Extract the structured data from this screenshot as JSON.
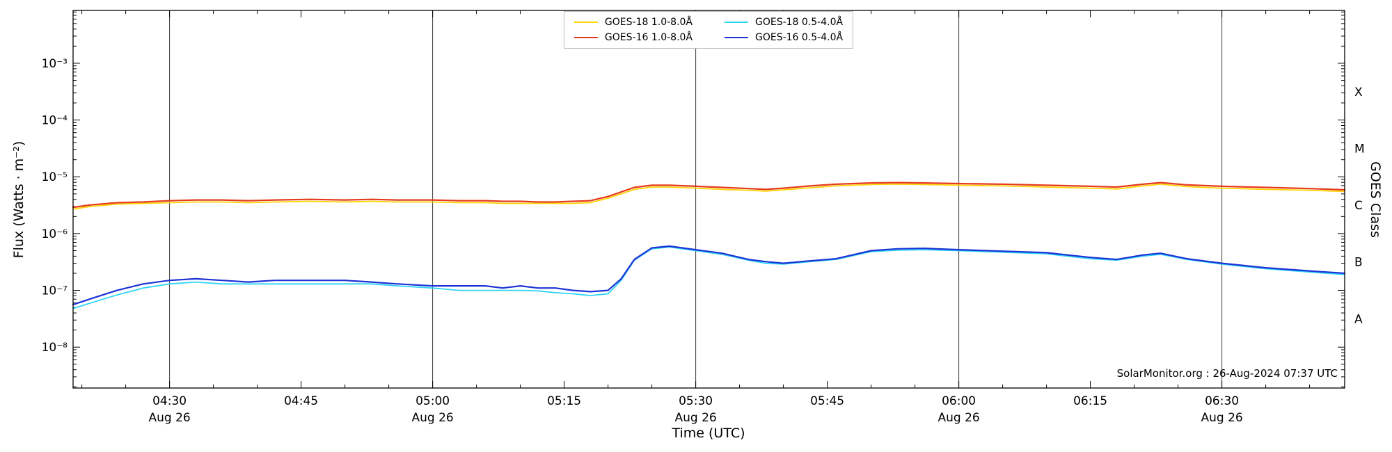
{
  "annotation": "SolarMonitor.org : 26-Aug-2024 07:37 UTC",
  "chart_data": {
    "type": "line",
    "xlabel": "Time (UTC)",
    "ylabel": "Flux (Watts · m⁻²)",
    "y2label": "GOES Class",
    "yscale": "log",
    "grid": "vertical-lines-at-half-hours",
    "legend_position": "top-center",
    "axes": {
      "x_range_minutes": [
        259,
        404
      ],
      "ylog_range": [
        -8.72,
        -2.07
      ]
    },
    "xticks": [
      {
        "minute": 270,
        "label": "04:30",
        "sub": "Aug 26",
        "major_line": true
      },
      {
        "minute": 285,
        "label": "04:45"
      },
      {
        "minute": 300,
        "label": "05:00",
        "sub": "Aug 26",
        "major_line": true
      },
      {
        "minute": 315,
        "label": "05:15"
      },
      {
        "minute": 330,
        "label": "05:30",
        "sub": "Aug 26",
        "major_line": true
      },
      {
        "minute": 345,
        "label": "05:45"
      },
      {
        "minute": 360,
        "label": "06:00",
        "sub": "Aug 26",
        "major_line": true
      },
      {
        "minute": 375,
        "label": "06:15"
      },
      {
        "minute": 390,
        "label": "06:30",
        "sub": "Aug 26",
        "major_line": true
      }
    ],
    "yticks": [
      {
        "log": -3,
        "label": "10⁻³"
      },
      {
        "log": -4,
        "label": "10⁻⁴"
      },
      {
        "log": -5,
        "label": "10⁻⁵"
      },
      {
        "log": -6,
        "label": "10⁻⁶"
      },
      {
        "log": -7,
        "label": "10⁻⁷"
      },
      {
        "log": -8,
        "label": "10⁻⁸"
      }
    ],
    "goes_classes": [
      {
        "label": "X",
        "log_mid": -3.5
      },
      {
        "label": "M",
        "log_mid": -4.5
      },
      {
        "label": "C",
        "log_mid": -5.5
      },
      {
        "label": "B",
        "log_mid": -6.5
      },
      {
        "label": "A",
        "log_mid": -7.5
      }
    ],
    "x_minutes_utc": [
      259,
      261,
      264,
      267,
      270,
      273,
      276,
      279,
      282,
      286,
      290,
      293,
      296,
      300,
      303,
      306,
      308,
      310,
      312,
      314,
      316,
      318,
      320,
      321.5,
      323,
      325,
      327,
      330,
      333,
      336,
      338,
      340,
      343,
      346,
      350,
      353,
      356,
      360,
      365,
      370,
      375,
      378,
      381,
      383,
      386,
      390,
      395,
      400,
      404
    ],
    "series": [
      {
        "key": "goes18-long",
        "name": "GOES-18 1.0-8.0Å",
        "color": "#ffd400",
        "width": 1.8,
        "values": [
          2.7e-06,
          3e-06,
          3.3e-06,
          3.4e-06,
          3.5e-06,
          3.6e-06,
          3.6e-06,
          3.5e-06,
          3.6e-06,
          3.7e-06,
          3.6e-06,
          3.7e-06,
          3.6e-06,
          3.6e-06,
          3.5e-06,
          3.5e-06,
          3.4e-06,
          3.4e-06,
          3.4e-06,
          3.4e-06,
          3.4e-06,
          3.5e-06,
          4.2e-06,
          5e-06,
          6e-06,
          6.6e-06,
          6.6e-06,
          6.3e-06,
          6e-06,
          5.8e-06,
          5.6e-06,
          5.9e-06,
          6.4e-06,
          6.9e-06,
          7.3e-06,
          7.4e-06,
          7.3e-06,
          7.1e-06,
          6.9e-06,
          6.6e-06,
          6.3e-06,
          6.1e-06,
          6.9e-06,
          7.4e-06,
          6.7e-06,
          6.3e-06,
          6e-06,
          5.8e-06,
          5.5e-06
        ]
      },
      {
        "key": "goes16-long",
        "name": "GOES-16 1.0-8.0Å",
        "color": "#e53a1c",
        "width": 2.2,
        "values": [
          2.9e-06,
          3.2e-06,
          3.5e-06,
          3.6e-06,
          3.8e-06,
          3.9e-06,
          3.9e-06,
          3.8e-06,
          3.9e-06,
          4e-06,
          3.9e-06,
          4e-06,
          3.9e-06,
          3.9e-06,
          3.8e-06,
          3.8e-06,
          3.7e-06,
          3.7e-06,
          3.6e-06,
          3.6e-06,
          3.7e-06,
          3.8e-06,
          4.5e-06,
          5.4e-06,
          6.5e-06,
          7.1e-06,
          7.1e-06,
          6.8e-06,
          6.5e-06,
          6.2e-06,
          6e-06,
          6.3e-06,
          6.9e-06,
          7.4e-06,
          7.8e-06,
          7.9e-06,
          7.8e-06,
          7.6e-06,
          7.4e-06,
          7.1e-06,
          6.8e-06,
          6.6e-06,
          7.4e-06,
          7.9e-06,
          7.2e-06,
          6.8e-06,
          6.5e-06,
          6.2e-06,
          5.9e-06
        ]
      },
      {
        "key": "goes18-short",
        "name": "GOES-18 0.5-4.0Å",
        "color": "#2fd4f4",
        "width": 1.8,
        "values": [
          4.8e-08,
          6e-08,
          8.3e-08,
          1.1e-07,
          1.3e-07,
          1.4e-07,
          1.3e-07,
          1.3e-07,
          1.3e-07,
          1.3e-07,
          1.3e-07,
          1.3e-07,
          1.2e-07,
          1.1e-07,
          1e-07,
          1e-07,
          1e-07,
          1e-07,
          9.8e-08,
          9.1e-08,
          8.7e-08,
          8.1e-08,
          8.7e-08,
          1.5e-07,
          3.4e-07,
          5.4e-07,
          5.8e-07,
          5e-07,
          4.3e-07,
          3.4e-07,
          3e-07,
          2.9e-07,
          3.2e-07,
          3.5e-07,
          4.8e-07,
          5.1e-07,
          5.2e-07,
          5e-07,
          4.7e-07,
          4.4e-07,
          3.6e-07,
          3.4e-07,
          4e-07,
          4.3e-07,
          3.5e-07,
          2.9e-07,
          2.4e-07,
          2.1e-07,
          1.9e-07
        ]
      },
      {
        "key": "goes16-short",
        "name": "GOES-16 0.5-4.0Å",
        "color": "#1c33d6",
        "width": 2.2,
        "values": [
          5.6e-08,
          7.1e-08,
          1e-07,
          1.3e-07,
          1.5e-07,
          1.6e-07,
          1.5e-07,
          1.4e-07,
          1.5e-07,
          1.5e-07,
          1.5e-07,
          1.4e-07,
          1.3e-07,
          1.2e-07,
          1.2e-07,
          1.2e-07,
          1.1e-07,
          1.2e-07,
          1.1e-07,
          1.1e-07,
          1e-07,
          9.5e-08,
          1e-07,
          1.6e-07,
          3.5e-07,
          5.6e-07,
          6e-07,
          5.2e-07,
          4.5e-07,
          3.5e-07,
          3.2e-07,
          3e-07,
          3.3e-07,
          3.6e-07,
          5e-07,
          5.4e-07,
          5.5e-07,
          5.2e-07,
          4.9e-07,
          4.6e-07,
          3.8e-07,
          3.5e-07,
          4.2e-07,
          4.5e-07,
          3.6e-07,
          3e-07,
          2.5e-07,
          2.2e-07,
          2e-07
        ]
      }
    ]
  }
}
